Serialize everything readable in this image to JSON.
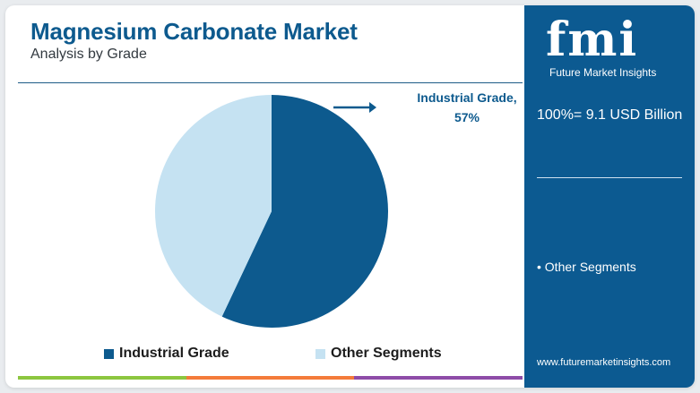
{
  "header": {
    "title": "Magnesium Carbonate Market",
    "subtitle": "Analysis by Grade"
  },
  "callout": {
    "line1": "Industrial Grade,",
    "line2": "57%"
  },
  "side_panel": {
    "logo_text": "fmi",
    "logo_tagline": "Future Market Insights",
    "total_label": "100%= 9.1 USD Billion",
    "segment_item": "• Other Segments",
    "website": "www.futuremarketinsights.com"
  },
  "colors": {
    "industrial": "#0d5a8e",
    "other": "#c5e2f2",
    "panel": "#0c5a91",
    "bar_green": "#8cc63f",
    "bar_orange": "#f47b3a",
    "bar_purple": "#8e4ca8"
  },
  "chart_data": {
    "type": "pie",
    "title": "Magnesium Carbonate Market",
    "subtitle": "Analysis by Grade",
    "slices": [
      {
        "name": "Industrial Grade",
        "value": 57
      },
      {
        "name": "Other Segments",
        "value": 43
      }
    ],
    "legend": [
      "Industrial Grade",
      "Other Segments"
    ],
    "legend_position": "bottom"
  }
}
